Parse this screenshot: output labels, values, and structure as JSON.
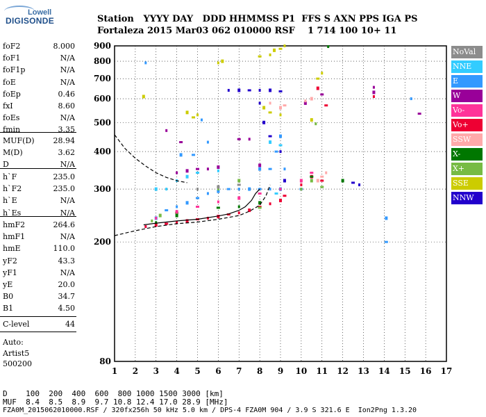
{
  "logo": {
    "line1": "Lowell",
    "line2": "DIGISONDE"
  },
  "header": {
    "labels": "Station   YYYY DAY   DDD HHMMSS P1  FFS S AXN PPS IGA PS",
    "values": "Fortaleza 2015 Mar03 062 010000 RSF    1 714 100 10+ 11"
  },
  "params_group1": [
    {
      "name": "foF2",
      "value": "8.000"
    },
    {
      "name": "foF1",
      "value": "N/A"
    },
    {
      "name": "foF1p",
      "value": "N/A"
    },
    {
      "name": "foE",
      "value": "N/A"
    },
    {
      "name": "foEp",
      "value": "0.46"
    },
    {
      "name": "fxI",
      "value": "8.60"
    },
    {
      "name": "foEs",
      "value": "N/A"
    },
    {
      "name": "fmin",
      "value": "3.35"
    }
  ],
  "params_group2": [
    {
      "name": "MUF(D)",
      "value": "28.94"
    },
    {
      "name": "M(D)",
      "value": "3.62"
    },
    {
      "name": "D",
      "value": "N/A"
    }
  ],
  "params_group3": [
    {
      "name": "h`F",
      "value": "235.0"
    },
    {
      "name": "h`F2",
      "value": "235.0"
    },
    {
      "name": "h`E",
      "value": "N/A"
    },
    {
      "name": "h`Es",
      "value": "N/A"
    }
  ],
  "params_group4": [
    {
      "name": "hmF2",
      "value": "264.6"
    },
    {
      "name": "hmF1",
      "value": "N/A"
    },
    {
      "name": "hmE",
      "value": "110.0"
    },
    {
      "name": "yF2",
      "value": "43.3"
    },
    {
      "name": "yF1",
      "value": "N/A"
    },
    {
      "name": "yE",
      "value": "20.0"
    },
    {
      "name": "B0",
      "value": "34.7"
    },
    {
      "name": "B1",
      "value": "4.50"
    }
  ],
  "c_level": {
    "name": "C-level",
    "value": "44"
  },
  "auto": {
    "line1": "Auto:",
    "line2": "Artist5",
    "line3": "500200"
  },
  "footer": {
    "line1": "D    100  200  400  600  800 1000 1500 3000 [km]",
    "line2": "MUF  8.4  8.5  8.9  9.7 10.8 12.4 17.0 28.9 [MHz]",
    "line3": "FZA0M_2015062010000.RSF / 320fx256h 50 kHz 5.0 km / DPS-4 FZA0M 904 / 3.9 S 321.6 E  Ion2Png 1.3.20"
  },
  "legend": [
    {
      "label": "NoVal",
      "color": "#8c8c8c"
    },
    {
      "label": "NNE",
      "color": "#33ccff"
    },
    {
      "label": "E",
      "color": "#3399ff"
    },
    {
      "label": "W",
      "color": "#990099"
    },
    {
      "label": "Vo-",
      "color": "#ff3399"
    },
    {
      "label": "Vo+",
      "color": "#ee0033"
    },
    {
      "label": "SSW",
      "color": "#ffaaaa"
    },
    {
      "label": "X-",
      "color": "#007700"
    },
    {
      "label": "X+",
      "color": "#77bb44"
    },
    {
      "label": "SSE",
      "color": "#cccc00"
    },
    {
      "label": "NNW",
      "color": "#2200cc"
    }
  ],
  "chart_data": {
    "type": "scatter",
    "title": "",
    "xlabel": "",
    "ylabel": "",
    "x_range": [
      1,
      17
    ],
    "y_range": [
      80,
      900
    ],
    "y_scale": "log",
    "x_ticks": [
      1,
      2,
      3,
      4,
      5,
      6,
      7,
      8,
      9,
      10,
      11,
      12,
      13,
      14,
      15,
      16,
      17
    ],
    "y_ticks": [
      80,
      200,
      300,
      400,
      500,
      600,
      700,
      800,
      900
    ],
    "grid": "dotted",
    "series": [
      {
        "name": "E",
        "color": "#3399ff",
        "points": [
          [
            2.5,
            225
          ],
          [
            3,
            240
          ],
          [
            3.5,
            255
          ],
          [
            4,
            262
          ],
          [
            4.5,
            270
          ],
          [
            5,
            280
          ],
          [
            5.5,
            290
          ],
          [
            6,
            295
          ],
          [
            6.5,
            300
          ],
          [
            7,
            300
          ],
          [
            7.5,
            300
          ],
          [
            8,
            300
          ],
          [
            8.5,
            300
          ],
          [
            9,
            300
          ],
          [
            10,
            300
          ],
          [
            5.2,
            510
          ],
          [
            4.2,
            390
          ],
          [
            4.8,
            390
          ],
          [
            5.5,
            430
          ],
          [
            8,
            350
          ],
          [
            8.5,
            350
          ],
          [
            9.2,
            350
          ],
          [
            9,
            450
          ],
          [
            8.8,
            400
          ],
          [
            2.5,
            790
          ],
          [
            14.1,
            240
          ],
          [
            14.1,
            200
          ],
          [
            15.3,
            600
          ]
        ]
      },
      {
        "name": "Vo+",
        "color": "#ee0033",
        "points": [
          [
            2.5,
            225
          ],
          [
            3,
            228
          ],
          [
            3.5,
            230
          ],
          [
            4,
            232
          ],
          [
            4.5,
            235
          ],
          [
            5,
            238
          ],
          [
            5.5,
            240
          ],
          [
            6,
            243
          ],
          [
            6.5,
            247
          ],
          [
            7,
            250
          ],
          [
            7.5,
            255
          ],
          [
            8,
            262
          ],
          [
            8.5,
            268
          ],
          [
            9,
            275
          ],
          [
            9.2,
            285
          ],
          [
            10,
            310
          ],
          [
            10.5,
            330
          ],
          [
            11,
            320
          ],
          [
            13.5,
            610
          ],
          [
            10.8,
            650
          ],
          [
            11.2,
            570
          ]
        ]
      },
      {
        "name": "W",
        "color": "#990099",
        "points": [
          [
            4,
            340
          ],
          [
            4.5,
            345
          ],
          [
            5,
            350
          ],
          [
            5.5,
            350
          ],
          [
            6,
            355
          ],
          [
            7,
            440
          ],
          [
            7.5,
            440
          ],
          [
            8,
            360
          ],
          [
            4.2,
            430
          ],
          [
            3.5,
            470
          ],
          [
            10.2,
            580
          ],
          [
            15.7,
            535
          ],
          [
            13.5,
            655
          ],
          [
            13.5,
            630
          ],
          [
            11,
            620
          ]
        ]
      },
      {
        "name": "NNW",
        "color": "#2200cc",
        "points": [
          [
            6.5,
            640
          ],
          [
            7,
            640
          ],
          [
            7.5,
            640
          ],
          [
            8,
            640
          ],
          [
            8.5,
            640
          ],
          [
            9,
            635
          ],
          [
            8,
            580
          ],
          [
            8.2,
            500
          ],
          [
            8.5,
            450
          ],
          [
            9,
            400
          ],
          [
            9.2,
            320
          ],
          [
            12.5,
            315
          ],
          [
            12.8,
            310
          ]
        ]
      },
      {
        "name": "SSE",
        "color": "#cccc00",
        "points": [
          [
            6,
            790
          ],
          [
            6.2,
            800
          ],
          [
            8,
            830
          ],
          [
            8.5,
            840
          ],
          [
            8.7,
            870
          ],
          [
            9,
            880
          ],
          [
            9.2,
            900
          ],
          [
            4.5,
            540
          ],
          [
            4.8,
            520
          ],
          [
            5,
            530
          ],
          [
            8.2,
            560
          ],
          [
            8.5,
            540
          ],
          [
            9,
            530
          ],
          [
            10.5,
            510
          ],
          [
            10.8,
            700
          ],
          [
            11,
            730
          ],
          [
            2.4,
            610
          ]
        ]
      },
      {
        "name": "SSW",
        "color": "#ffaaaa",
        "points": [
          [
            8.5,
            580
          ],
          [
            9,
            560
          ],
          [
            9.2,
            570
          ],
          [
            10.2,
            590
          ],
          [
            10.5,
            600
          ],
          [
            11,
            330
          ],
          [
            11.2,
            340
          ],
          [
            10.8,
            320
          ]
        ]
      },
      {
        "name": "X+",
        "color": "#77bb44",
        "points": [
          [
            2.8,
            235
          ],
          [
            3.2,
            245
          ],
          [
            4,
            250
          ],
          [
            6,
            300
          ],
          [
            7,
            320
          ],
          [
            8,
            260
          ],
          [
            10,
            300
          ],
          [
            10.5,
            320
          ],
          [
            11,
            305
          ],
          [
            10.7,
            495
          ]
        ]
      },
      {
        "name": "X-",
        "color": "#007700",
        "points": [
          [
            3,
            232
          ],
          [
            4,
            245
          ],
          [
            6,
            260
          ],
          [
            7,
            262
          ],
          [
            8,
            270
          ],
          [
            10.5,
            330
          ],
          [
            11.3,
            895
          ],
          [
            12,
            320
          ]
        ]
      },
      {
        "name": "NNE",
        "color": "#33ccff",
        "points": [
          [
            4,
            320
          ],
          [
            4.5,
            330
          ],
          [
            5,
            340
          ],
          [
            6,
            345
          ],
          [
            8.5,
            430
          ],
          [
            9,
            420
          ],
          [
            3.5,
            300
          ],
          [
            3,
            300
          ],
          [
            8.8,
            290
          ]
        ]
      },
      {
        "name": "Vo-",
        "color": "#ff3399",
        "points": [
          [
            3,
            240
          ],
          [
            4,
            252
          ],
          [
            5,
            262
          ],
          [
            6,
            272
          ],
          [
            7,
            280
          ],
          [
            8,
            290
          ],
          [
            9,
            300
          ],
          [
            10,
            320
          ],
          [
            10.5,
            340
          ]
        ]
      },
      {
        "name": "NoVal",
        "color": "#8c8c8c",
        "points": [
          [
            5,
            300
          ],
          [
            6,
            305
          ],
          [
            7,
            310
          ]
        ]
      }
    ],
    "curves": [
      {
        "name": "trace",
        "style": "solid",
        "points": [
          [
            2.4,
            228
          ],
          [
            3,
            231
          ],
          [
            4,
            235
          ],
          [
            5,
            238
          ],
          [
            6,
            244
          ],
          [
            6.5,
            248
          ],
          [
            7,
            255
          ],
          [
            7.3,
            262
          ],
          [
            7.6,
            275
          ],
          [
            7.8,
            290
          ],
          [
            8,
            300
          ]
        ]
      },
      {
        "name": "profile",
        "style": "dashed",
        "points": [
          [
            1,
            455
          ],
          [
            1.5,
            410
          ],
          [
            2,
            380
          ],
          [
            2.5,
            358
          ],
          [
            3,
            340
          ],
          [
            3.5,
            328
          ],
          [
            4,
            320
          ],
          [
            4.5,
            315
          ]
        ]
      },
      {
        "name": "profile-lower",
        "style": "dashed",
        "points": [
          [
            1,
            210
          ],
          [
            2,
            218
          ],
          [
            3,
            225
          ],
          [
            4,
            230
          ],
          [
            5,
            233
          ],
          [
            6,
            238
          ],
          [
            7,
            245
          ],
          [
            7.5,
            253
          ],
          [
            8,
            265
          ],
          [
            8.3,
            285
          ],
          [
            8.5,
            310
          ]
        ]
      }
    ]
  }
}
